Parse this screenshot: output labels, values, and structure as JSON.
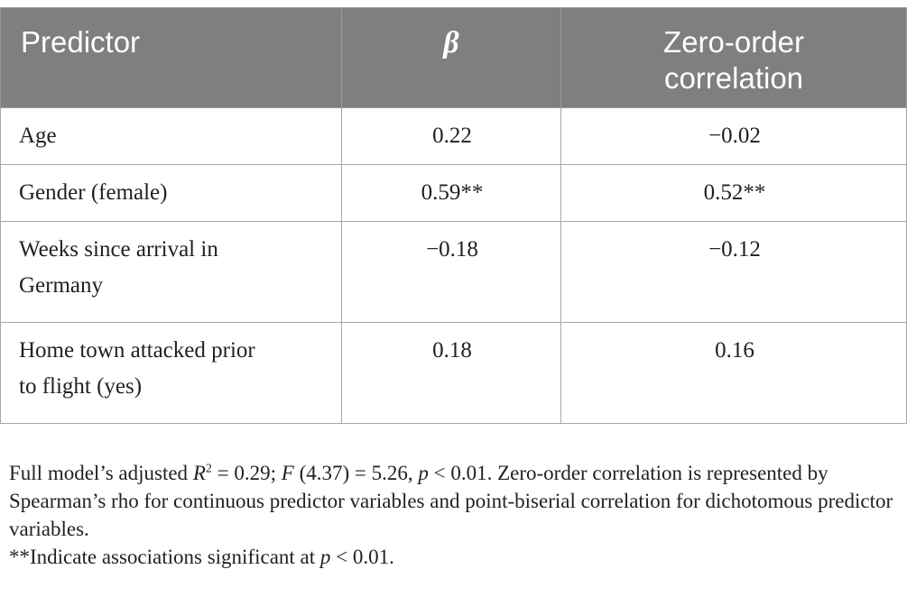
{
  "table": {
    "headers": {
      "predictor": "Predictor",
      "beta": "β",
      "zero_order_line1": "Zero-order",
      "zero_order_line2": "correlation"
    },
    "rows": [
      {
        "predictor": "Age",
        "beta": "0.22",
        "zero_order": "−0.02"
      },
      {
        "predictor": "Gender (female)",
        "beta": "0.59**",
        "zero_order": "0.52**"
      },
      {
        "predictor_line1": "Weeks since arrival in",
        "predictor_line2": "Germany",
        "beta": "−0.18",
        "zero_order": "−0.12"
      },
      {
        "predictor_line1": "Home town attacked prior",
        "predictor_line2": "to flight (yes)",
        "beta": "0.18",
        "zero_order": "0.16"
      }
    ]
  },
  "footnote": {
    "model_prefix": "Full model’s adjusted ",
    "r_symbol": "R",
    "r_superscript": "2",
    "r_value": " = 0.29; ",
    "f_symbol": "F",
    "f_value": " (4.37) = 5.26, ",
    "p_symbol": "p",
    "p_value": " < 0.01. Zero-order correlation is represented by Spearman’s rho for continuous predictor variables and point-biserial correlation for dichotomous predictor variables.",
    "sig_prefix": "**Indicate associations significant at ",
    "sig_p_symbol": "p",
    "sig_p_value": " < 0.01."
  }
}
